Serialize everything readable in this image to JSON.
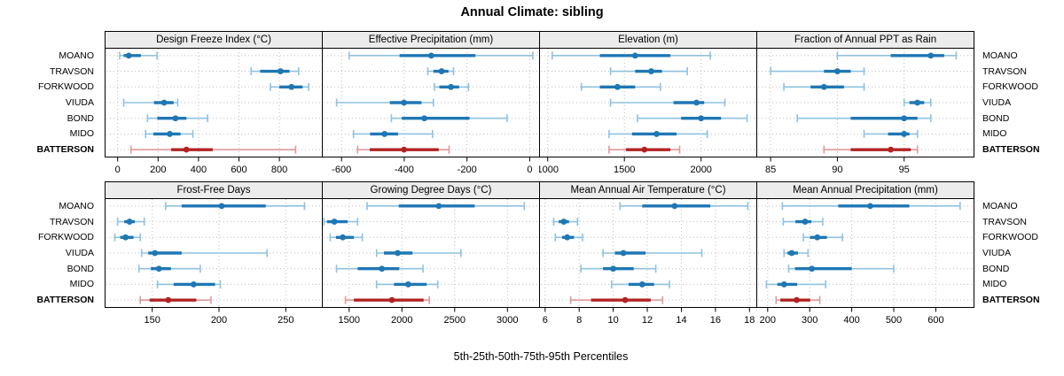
{
  "title": "Annual Climate: sibling",
  "caption": "5th-25th-50th-75th-95th Percentiles",
  "sites": [
    "MOANO",
    "TRAVSON",
    "FORKWOOD",
    "VIUDA",
    "BOND",
    "MIDO",
    "BATTERSON"
  ],
  "emphasis_site": "BATTERSON",
  "colors": {
    "blue": "#1f77b4",
    "blue_light": "#8fc2e0",
    "red": "#b22222",
    "red_light": "#dc9a9a",
    "strip_bg": "#ececec",
    "grid": "#bdbdbd",
    "border": "#000000",
    "tick_text": "#000000"
  },
  "chart_data": {
    "type": "dotplot-interval",
    "percentiles": [
      5,
      25,
      50,
      75,
      95
    ],
    "layout": "2 rows x 4 cols",
    "grid": "dotted",
    "panels": [
      {
        "title": "Design Freeze Index (°C)",
        "xlim": [
          -60,
          1010
        ],
        "ticks": [
          0,
          200,
          400,
          600,
          800
        ],
        "series": [
          {
            "name": "MOANO",
            "values": [
              10,
              30,
              55,
              115,
              195
            ]
          },
          {
            "name": "TRAVSON",
            "values": [
              660,
              705,
              805,
              850,
              895
            ]
          },
          {
            "name": "FORKWOOD",
            "values": [
              755,
              800,
              860,
              915,
              945
            ]
          },
          {
            "name": "VIUDA",
            "values": [
              30,
              180,
              230,
              277,
              297
            ]
          },
          {
            "name": "BOND",
            "values": [
              148,
              196,
              286,
              340,
              445
            ]
          },
          {
            "name": "MIDO",
            "values": [
              138,
              177,
              258,
              311,
              372
            ]
          },
          {
            "name": "BATTERSON",
            "values": [
              66,
              265,
              340,
              470,
              880
            ]
          }
        ]
      },
      {
        "title": "Effective Precipitation (mm)",
        "xlim": [
          -660,
          30
        ],
        "ticks": [
          -600,
          -400,
          -200,
          0
        ],
        "series": [
          {
            "name": "MOANO",
            "values": [
              -576,
              -415,
              -314,
              -173,
              10
            ]
          },
          {
            "name": "TRAVSON",
            "values": [
              -325,
              -307,
              -281,
              -259,
              -243
            ]
          },
          {
            "name": "FORKWOOD",
            "values": [
              -304,
              -288,
              -251,
              -225,
              -195
            ]
          },
          {
            "name": "VIUDA",
            "values": [
              -616,
              -446,
              -401,
              -345,
              -307
            ]
          },
          {
            "name": "BOND",
            "values": [
              -441,
              -408,
              -336,
              -192,
              -72
            ]
          },
          {
            "name": "MIDO",
            "values": [
              -562,
              -509,
              -463,
              -420,
              -310
            ]
          },
          {
            "name": "BATTERSON",
            "values": [
              -549,
              -510,
              -401,
              -290,
              -257
            ]
          }
        ]
      },
      {
        "title": "Elevation (m)",
        "xlim": [
          950,
          2360
        ],
        "ticks": [
          1000,
          1500,
          2000
        ],
        "series": [
          {
            "name": "MOANO",
            "values": [
              1030,
              1340,
              1570,
              1800,
              2060
            ]
          },
          {
            "name": "TRAVSON",
            "values": [
              1410,
              1570,
              1675,
              1745,
              1910
            ]
          },
          {
            "name": "FORKWOOD",
            "values": [
              1220,
              1340,
              1455,
              1570,
              1735
            ]
          },
          {
            "name": "VIUDA",
            "values": [
              1410,
              1820,
              1970,
              2020,
              2155
            ]
          },
          {
            "name": "BOND",
            "values": [
              1585,
              1870,
              2000,
              2130,
              2300
            ]
          },
          {
            "name": "MIDO",
            "values": [
              1400,
              1550,
              1710,
              1840,
              2040
            ]
          },
          {
            "name": "BATTERSON",
            "values": [
              1400,
              1510,
              1630,
              1800,
              1860
            ]
          }
        ]
      },
      {
        "title": "Fraction of Annual PPT as Rain",
        "xlim": [
          84,
          100.2
        ],
        "ticks": [
          85,
          90,
          95
        ],
        "series": [
          {
            "name": "MOANO",
            "values": [
              90,
              94,
              97,
              98,
              98.9
            ]
          },
          {
            "name": "TRAVSON",
            "values": [
              85,
              89,
              90,
              91,
              92
            ]
          },
          {
            "name": "FORKWOOD",
            "values": [
              86,
              88,
              89,
              90.5,
              92
            ]
          },
          {
            "name": "VIUDA",
            "values": [
              95,
              95.4,
              96,
              96.5,
              97
            ]
          },
          {
            "name": "BOND",
            "values": [
              87,
              91,
              95,
              96,
              97
            ]
          },
          {
            "name": "MIDO",
            "values": [
              92,
              93.8,
              95,
              95.4,
              96
            ]
          },
          {
            "name": "BATTERSON",
            "values": [
              89,
              91,
              94,
              95.5,
              96
            ]
          }
        ]
      },
      {
        "title": "Frost-Free Days",
        "xlim": [
          115,
          277
        ],
        "ticks": [
          150,
          200,
          250
        ],
        "series": [
          {
            "name": "MOANO",
            "values": [
              160,
              172,
              202,
              235,
              264
            ]
          },
          {
            "name": "TRAVSON",
            "values": [
              124,
              129,
              133,
              137,
              144
            ]
          },
          {
            "name": "FORKWOOD",
            "values": [
              122,
              126,
              130,
              136,
              141
            ]
          },
          {
            "name": "VIUDA",
            "values": [
              142,
              147,
              152,
              172,
              236
            ]
          },
          {
            "name": "BOND",
            "values": [
              140,
              149,
              155,
              164,
              186
            ]
          },
          {
            "name": "MIDO",
            "values": [
              154,
              166,
              181,
              197,
              201
            ]
          },
          {
            "name": "BATTERSON",
            "values": [
              141,
              148,
              162,
              183,
              194
            ]
          }
        ]
      },
      {
        "title": "Growing Degree Days (°C)",
        "xlim": [
          1250,
          3300
        ],
        "ticks": [
          1500,
          2000,
          2500,
          3000
        ],
        "series": [
          {
            "name": "MOANO",
            "values": [
              1670,
              1970,
              2350,
              2690,
              3160
            ]
          },
          {
            "name": "TRAVSON",
            "values": [
              1260,
              1290,
              1360,
              1485,
              1580
            ]
          },
          {
            "name": "FORKWOOD",
            "values": [
              1320,
              1375,
              1440,
              1545,
              1625
            ]
          },
          {
            "name": "VIUDA",
            "values": [
              1760,
              1830,
              1960,
              2100,
              2560
            ]
          },
          {
            "name": "BOND",
            "values": [
              1380,
              1580,
              1810,
              1975,
              2200
            ]
          },
          {
            "name": "MIDO",
            "values": [
              1760,
              1925,
              2060,
              2235,
              2340
            ]
          },
          {
            "name": "BATTERSON",
            "values": [
              1465,
              1545,
              1905,
              2205,
              2260
            ]
          }
        ]
      },
      {
        "title": "Mean Annual Air Temperature (°C)",
        "xlim": [
          5.7,
          18.4
        ],
        "ticks": [
          6,
          8,
          10,
          12,
          14,
          16,
          18
        ],
        "series": [
          {
            "name": "MOANO",
            "values": [
              10.4,
              11.7,
              13.6,
              15.7,
              17.9
            ]
          },
          {
            "name": "TRAVSON",
            "values": [
              6.5,
              6.8,
              7.1,
              7.4,
              7.9
            ]
          },
          {
            "name": "FORKWOOD",
            "values": [
              6.6,
              7.0,
              7.3,
              7.7,
              8.2
            ]
          },
          {
            "name": "VIUDA",
            "values": [
              9.4,
              10.1,
              10.6,
              11.9,
              15.2
            ]
          },
          {
            "name": "BOND",
            "values": [
              8.1,
              9.4,
              10.0,
              11.2,
              12.5
            ]
          },
          {
            "name": "MIDO",
            "values": [
              9.9,
              10.9,
              11.7,
              12.4,
              13.3
            ]
          },
          {
            "name": "BATTERSON",
            "values": [
              7.5,
              8.7,
              10.7,
              12.2,
              12.9
            ]
          }
        ]
      },
      {
        "title": "Mean Annual Precipitation (mm)",
        "xlim": [
          175,
          690
        ],
        "ticks": [
          200,
          300,
          400,
          500,
          600
        ],
        "series": [
          {
            "name": "MOANO",
            "values": [
              235,
              368,
              444,
              537,
              658
            ]
          },
          {
            "name": "TRAVSON",
            "values": [
              237,
              266,
              289,
              304,
              331
            ]
          },
          {
            "name": "FORKWOOD",
            "values": [
              285,
              301,
              318,
              341,
              378
            ]
          },
          {
            "name": "VIUDA",
            "values": [
              239,
              247,
              257,
              272,
              296
            ]
          },
          {
            "name": "BOND",
            "values": [
              250,
              265,
              305,
              400,
              500
            ]
          },
          {
            "name": "MIDO",
            "values": [
              197,
              223,
              239,
              270,
              338
            ]
          },
          {
            "name": "BATTERSON",
            "values": [
              220,
              230,
              269,
              301,
              324
            ]
          }
        ]
      }
    ]
  }
}
